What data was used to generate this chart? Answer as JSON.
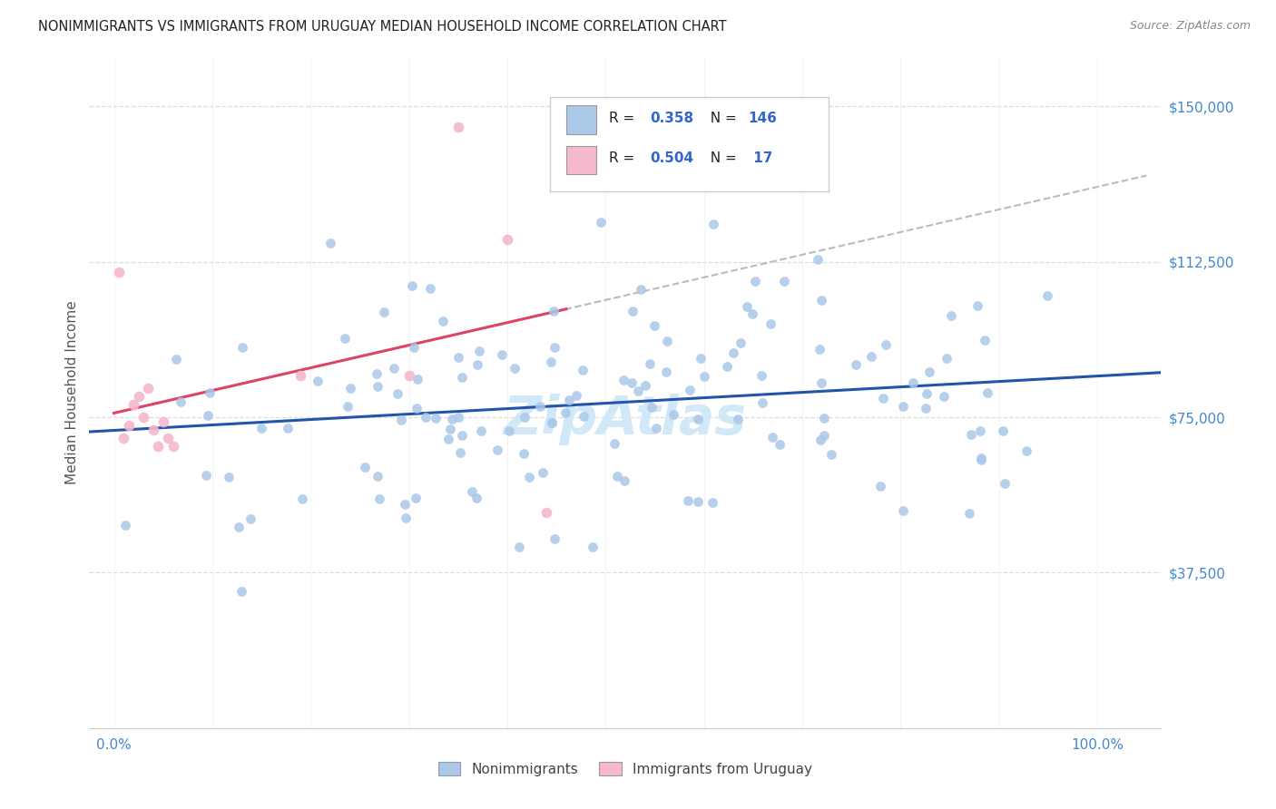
{
  "title": "NONIMMIGRANTS VS IMMIGRANTS FROM URUGUAY MEDIAN HOUSEHOLD INCOME CORRELATION CHART",
  "source": "Source: ZipAtlas.com",
  "ylabel": "Median Household Income",
  "ytick_vals": [
    37500,
    75000,
    112500,
    150000
  ],
  "ytick_labels": [
    "$37,500",
    "$75,000",
    "$112,500",
    "$150,000"
  ],
  "ymin": 0,
  "ymax": 162000,
  "xmin": 0.0,
  "xmax": 1.04,
  "legend_r_blue": "0.358",
  "legend_n_blue": "146",
  "legend_r_pink": "0.504",
  "legend_n_pink": "17",
  "blue_scatter_color": "#aac8e8",
  "pink_scatter_color": "#f5b8cc",
  "line_blue_color": "#2255aa",
  "line_pink_color": "#dd4466",
  "line_dashed_color": "#bbbbbb",
  "title_color": "#222222",
  "source_color": "#888888",
  "axis_blue_color": "#4488cc",
  "grid_color": "#dddddd",
  "bg_color": "#ffffff",
  "watermark": "ZipAtlas",
  "watermark_color": "#d0e8f8",
  "bottom_legend_nonimm": "Nonimmigrants",
  "bottom_legend_imm": "Immigrants from Uruguay"
}
